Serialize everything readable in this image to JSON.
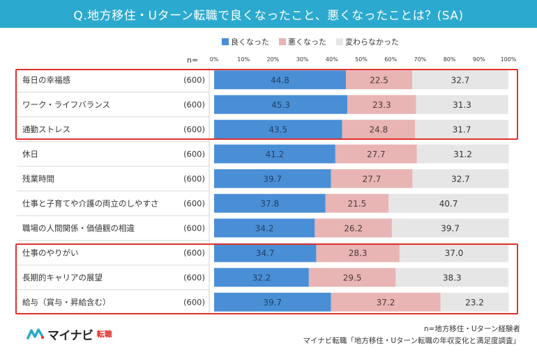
{
  "title": "Q.地方移住・Uターン転職で良くなったこと、悪くなったことは？(SA)",
  "n_label": "n=",
  "legend": [
    {
      "label": "良くなった",
      "color": "#4a8fd6"
    },
    {
      "label": "悪くなった",
      "color": "#e8b4b4"
    },
    {
      "label": "変わらなかった",
      "color": "#e6e6e6"
    }
  ],
  "footnote": {
    "line1": "n=地方移住・Uターン経験者",
    "line2": "マイナビ転職「地方移住・Uターン転職の年収変化と満足度調査」"
  },
  "logo": {
    "text": "マイナビ",
    "sub": "転職"
  },
  "chart_data": {
    "type": "bar",
    "orientation": "horizontal",
    "stacked": true,
    "xlim": [
      0,
      100
    ],
    "x_ticks": [
      "0%",
      "10%",
      "20%",
      "30%",
      "40%",
      "50%",
      "60%",
      "70%",
      "80%",
      "90%",
      "100%"
    ],
    "categories": [
      "毎日の幸福感",
      "ワーク・ライフバランス",
      "通勤ストレス",
      "休日",
      "残業時間",
      "仕事と子育てや介護の両立のしやすさ",
      "職場の人間関係・価値観の相違",
      "仕事のやりがい",
      "長期的キャリアの展望",
      "給与（賞与・昇給含む）"
    ],
    "n_values": [
      "(600)",
      "(600)",
      "(600)",
      "(600)",
      "(600)",
      "(600)",
      "(600)",
      "(600)",
      "(600)",
      "(600)"
    ],
    "series": [
      {
        "name": "良くなった",
        "color": "#4a8fd6",
        "text_color": "#1f3f66",
        "values": [
          44.8,
          45.3,
          43.5,
          41.2,
          39.7,
          37.8,
          34.2,
          34.7,
          32.2,
          39.7
        ],
        "labels": [
          "44.8",
          "45.3",
          "43.5",
          "41.2",
          "39.7",
          "37.8",
          "34.2",
          "34.7",
          "32.2",
          "39.7"
        ]
      },
      {
        "name": "悪くなった",
        "color": "#e8b4b4",
        "text_color": "#4a3a3a",
        "values": [
          22.5,
          23.3,
          24.8,
          27.7,
          27.7,
          21.5,
          26.2,
          28.3,
          29.5,
          37.2
        ],
        "labels": [
          "22.5",
          "23.3",
          "24.8",
          "27.7",
          "27.7",
          "21.5",
          "26.2",
          "28.3",
          "29.5",
          "37.2"
        ]
      },
      {
        "name": "変わらなかった",
        "color": "#e6e6e6",
        "text_color": "#333333",
        "values": [
          32.7,
          31.3,
          31.7,
          31.2,
          32.7,
          40.7,
          39.7,
          37.0,
          38.3,
          23.2
        ],
        "labels": [
          "32.7",
          "31.3",
          "31.7",
          "31.2",
          "32.7",
          "40.7",
          "39.7",
          "37.0",
          "38.3",
          "23.2"
        ]
      }
    ],
    "highlight_groups": [
      [
        0,
        2
      ],
      [
        7,
        9
      ]
    ]
  }
}
